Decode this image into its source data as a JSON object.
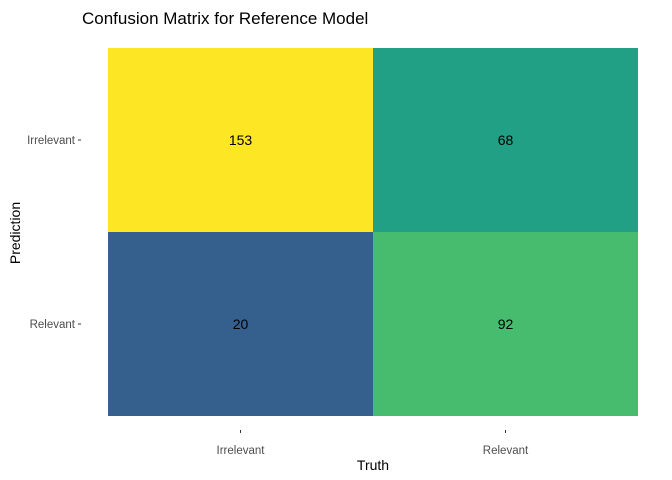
{
  "chart_data": {
    "type": "heatmap",
    "title": "Confusion Matrix for Reference Model",
    "xlabel": "Truth",
    "ylabel": "Prediction",
    "x_categories": [
      "Irrelevant",
      "Relevant"
    ],
    "y_categories": [
      "Irrelevant",
      "Relevant"
    ],
    "values": [
      [
        153,
        68
      ],
      [
        20,
        92
      ]
    ],
    "colors": [
      [
        "#fde725",
        "#21a085"
      ],
      [
        "#355f8d",
        "#47bb6e"
      ]
    ],
    "legend": "none",
    "grid": false
  }
}
